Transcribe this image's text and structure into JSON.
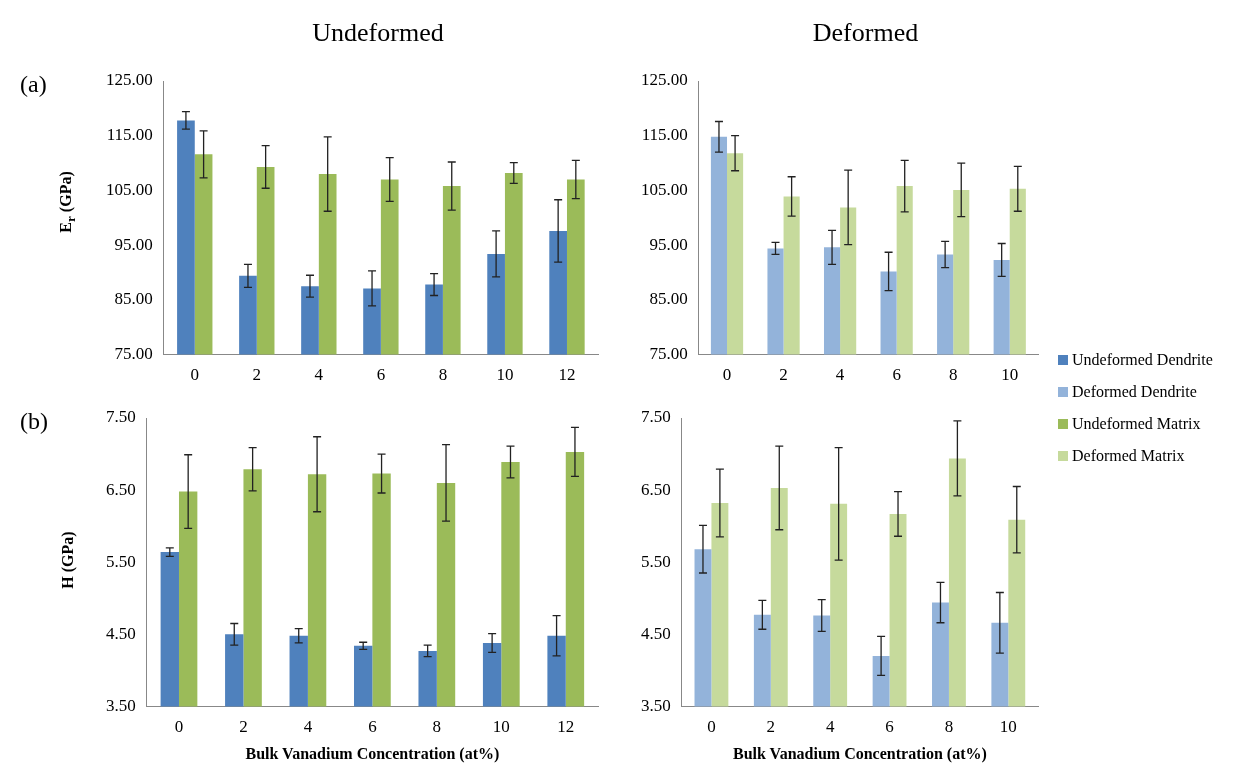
{
  "chart_data": [
    {
      "type": "bar",
      "title": "Undeformed",
      "ylabel": "E$_{r}$ (GPa)",
      "annotations": [
        "(a)"
      ],
      "categories": [
        "0",
        "2",
        "4",
        "6",
        "8",
        "10",
        "12"
      ],
      "legend": "right",
      "series": [
        {
          "name": "Undeformed Dendrite",
          "color": "#4f81bd",
          "values": [
            117.8,
            89.4,
            87.5,
            87.1,
            87.8,
            93.4,
            97.6
          ],
          "errors": [
            1.6,
            2.1,
            2.0,
            3.2,
            2.0,
            4.2,
            5.7
          ]
        },
        {
          "name": "Undeformed Matrix",
          "color": "#9bbb59",
          "values": [
            111.6,
            109.3,
            108.0,
            107.0,
            105.8,
            108.2,
            107.0
          ],
          "errors": [
            4.3,
            3.9,
            6.8,
            4.0,
            4.4,
            1.9,
            3.5
          ]
        }
      ],
      "ylim": [
        75,
        125
      ],
      "yticks": [
        {
          "value": 75,
          "label": "75.00"
        },
        {
          "value": 85,
          "label": "85.00"
        },
        {
          "value": 95,
          "label": "95.00"
        },
        {
          "value": 105,
          "label": "105.00"
        },
        {
          "value": 115,
          "label": "115.00"
        },
        {
          "value": 125,
          "label": "125.00"
        }
      ]
    },
    {
      "type": "bar",
      "title": "Deformed",
      "categories": [
        "0",
        "2",
        "4",
        "6",
        "8",
        "10"
      ],
      "legend": "right",
      "series": [
        {
          "name": "Deformed Dendrite",
          "color": "#93b3da",
          "values": [
            114.8,
            94.4,
            94.6,
            90.2,
            93.3,
            92.3
          ],
          "errors": [
            2.8,
            1.1,
            3.1,
            3.5,
            2.4,
            3.0
          ]
        },
        {
          "name": "Deformed Matrix",
          "color": "#c6da9c",
          "values": [
            111.8,
            103.9,
            101.9,
            105.8,
            105.1,
            105.3
          ],
          "errors": [
            3.2,
            3.6,
            6.8,
            4.7,
            4.9,
            4.1
          ]
        }
      ],
      "ylim": [
        75,
        125
      ],
      "yticks": [
        {
          "value": 75,
          "label": "75.00"
        },
        {
          "value": 85,
          "label": "85.00"
        },
        {
          "value": 95,
          "label": "95.00"
        },
        {
          "value": 105,
          "label": "105.00"
        },
        {
          "value": 115,
          "label": "115.00"
        },
        {
          "value": 125,
          "label": "125.00"
        }
      ]
    },
    {
      "type": "bar",
      "ylabel": "H (GPa)",
      "xlabel": "Bulk Vanadium Concentration (at%)",
      "annotations": [
        "(b)"
      ],
      "categories": [
        "0",
        "2",
        "4",
        "6",
        "8",
        "10",
        "12"
      ],
      "series": [
        {
          "color": "#4f81bd",
          "values": [
            5.64,
            4.5,
            4.48,
            4.34,
            4.27,
            4.38,
            4.48
          ],
          "errors": [
            0.06,
            0.15,
            0.1,
            0.05,
            0.08,
            0.13,
            0.28
          ]
        },
        {
          "color": "#9bbb59",
          "values": [
            6.48,
            6.79,
            6.72,
            6.73,
            6.6,
            6.89,
            7.03
          ],
          "errors": [
            0.51,
            0.3,
            0.52,
            0.27,
            0.53,
            0.22,
            0.34
          ]
        }
      ],
      "ylim": [
        3.5,
        7.5
      ],
      "yticks": [
        {
          "value": 3.5,
          "label": "3.50"
        },
        {
          "value": 4.5,
          "label": "4.50"
        },
        {
          "value": 5.5,
          "label": "5.50"
        },
        {
          "value": 6.5,
          "label": "6.50"
        },
        {
          "value": 7.5,
          "label": "7.50"
        }
      ]
    },
    {
      "type": "bar",
      "xlabel": "Bulk Vanadium Concentration (at%)",
      "categories": [
        "0",
        "2",
        "4",
        "6",
        "8",
        "10"
      ],
      "series": [
        {
          "color": "#93b3da",
          "values": [
            5.68,
            4.77,
            4.76,
            4.2,
            4.94,
            4.66
          ],
          "errors": [
            0.33,
            0.2,
            0.22,
            0.27,
            0.28,
            0.42
          ]
        },
        {
          "color": "#c6da9c",
          "values": [
            6.32,
            6.53,
            6.31,
            6.17,
            6.94,
            6.09
          ],
          "errors": [
            0.47,
            0.58,
            0.78,
            0.31,
            0.52,
            0.46
          ]
        }
      ],
      "ylim": [
        3.5,
        7.5
      ],
      "yticks": [
        {
          "value": 3.5,
          "label": "3.50"
        },
        {
          "value": 4.5,
          "label": "4.50"
        },
        {
          "value": 5.5,
          "label": "5.50"
        },
        {
          "value": 6.5,
          "label": "6.50"
        },
        {
          "value": 7.5,
          "label": "7.50"
        }
      ]
    }
  ]
}
